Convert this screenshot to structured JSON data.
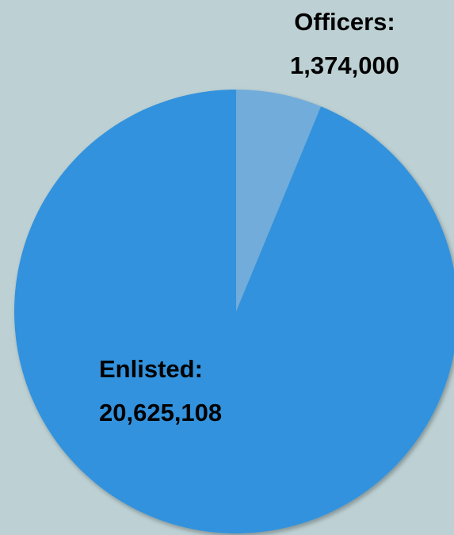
{
  "chart_data": {
    "type": "pie",
    "categories": [
      "Officers:",
      "Enlisted:"
    ],
    "values": [
      1374000,
      20625108
    ],
    "value_labels": [
      "1,374,000",
      "20,625,108"
    ],
    "colors": [
      "#72acda",
      "#3192dd"
    ]
  }
}
